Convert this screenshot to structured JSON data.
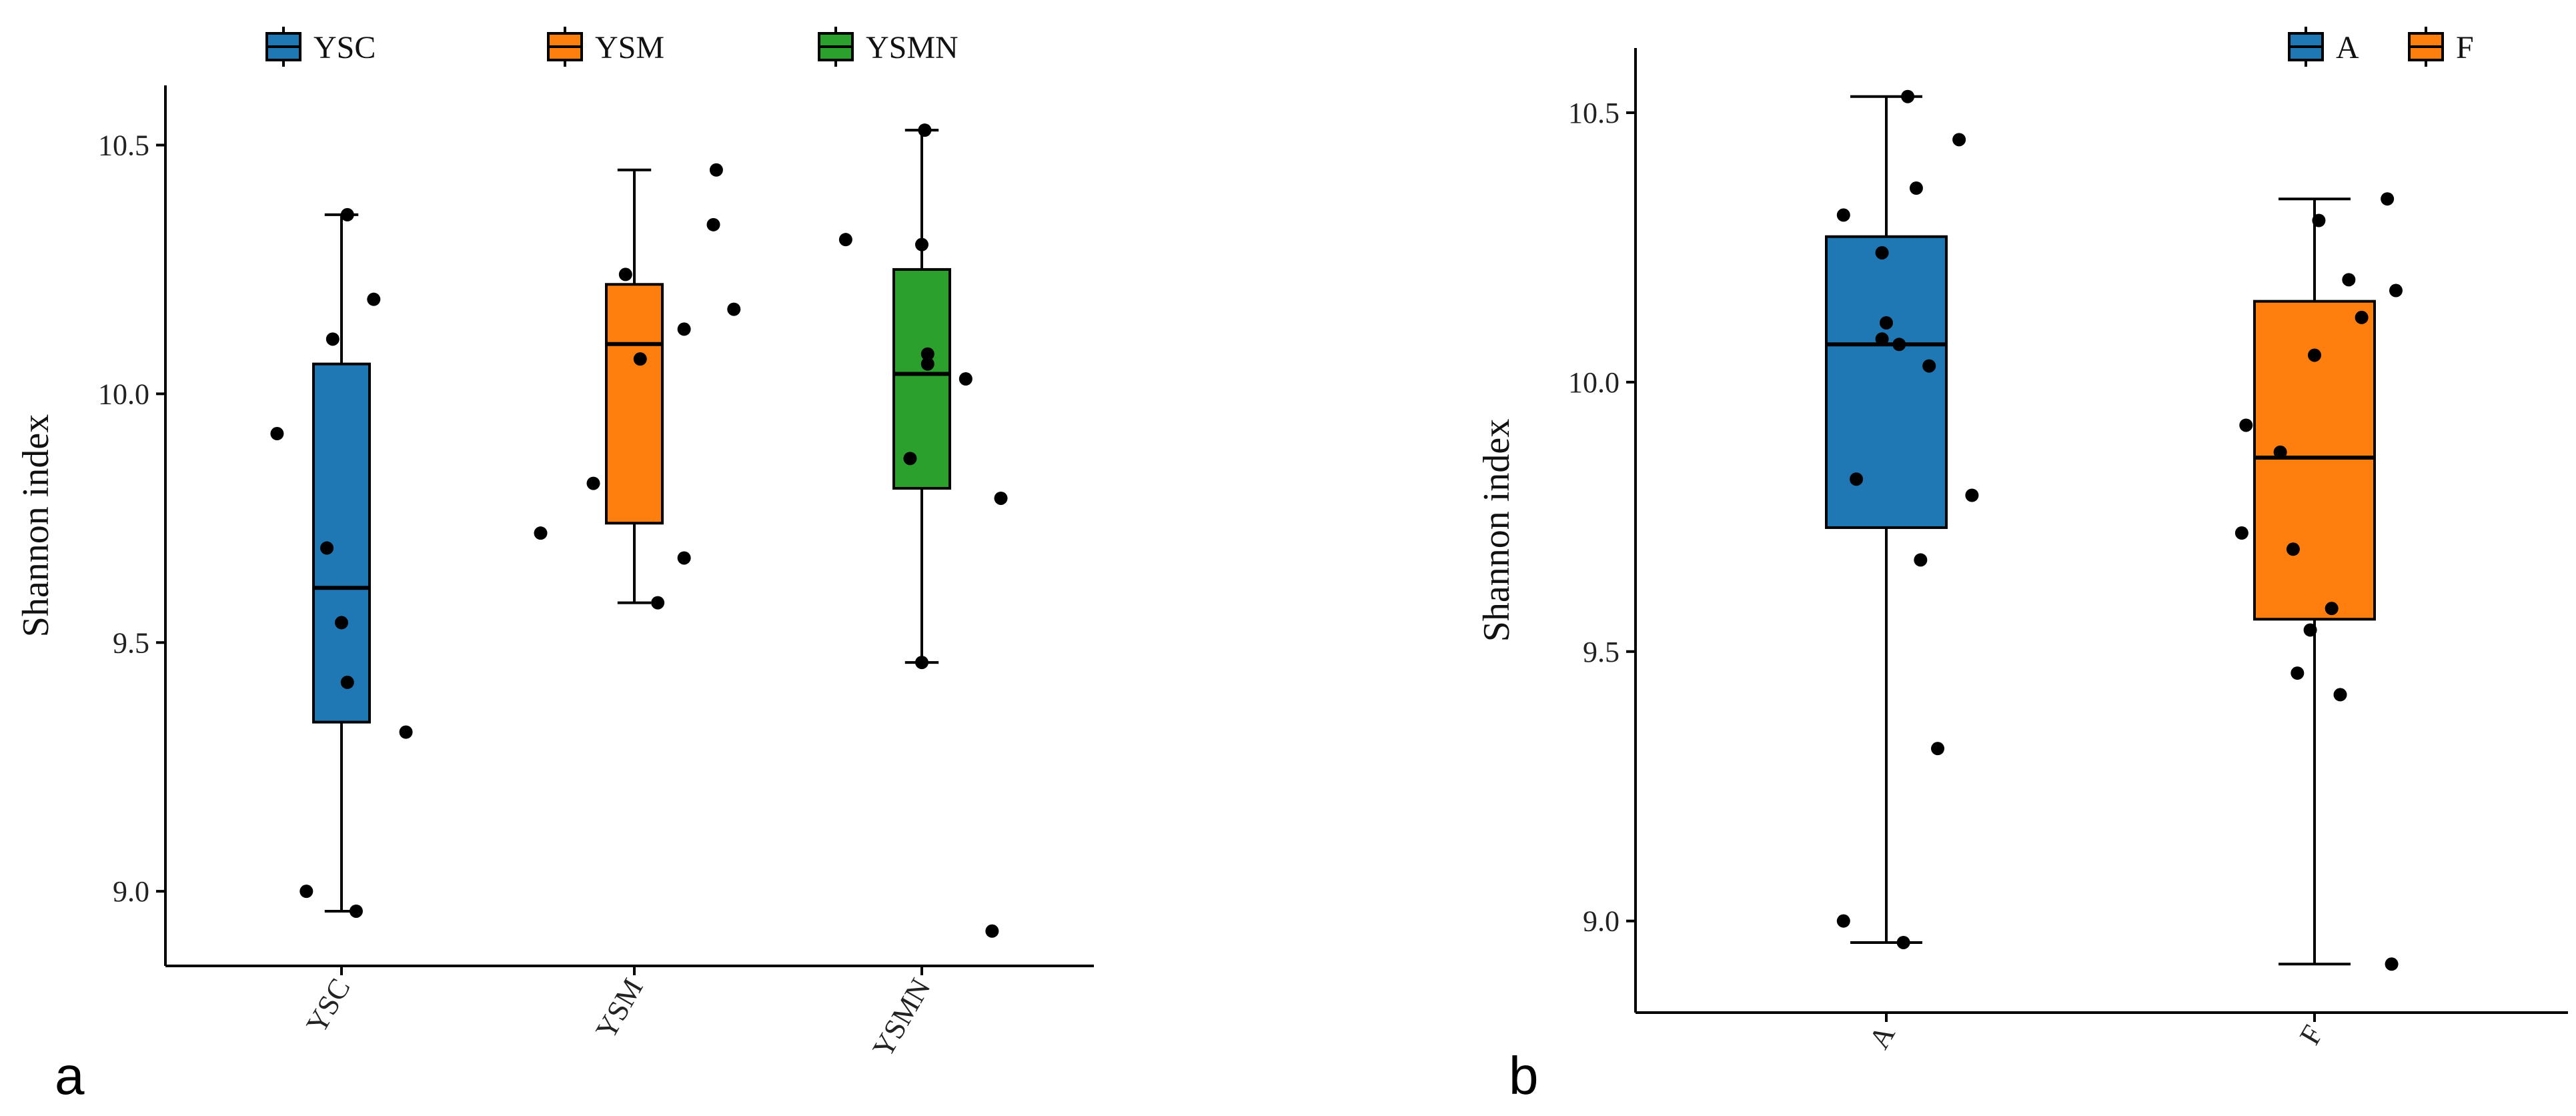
{
  "chart_data": [
    {
      "type": "box",
      "panel_label": "a",
      "ylabel": "Shannon index",
      "xlabel": "",
      "ylim": [
        8.85,
        10.62
      ],
      "yticks": [
        9.0,
        9.5,
        10.0,
        10.5
      ],
      "ytick_labels": [
        "9.0",
        "9.5",
        "10.0",
        "10.5"
      ],
      "legend_position": "top",
      "categories": [
        "YSC",
        "YSM",
        "YSMN"
      ],
      "series": [
        {
          "name": "YSC",
          "color": "#1F77B4",
          "whisker_low": 8.96,
          "q1": 9.34,
          "median": 9.61,
          "q3": 10.06,
          "whisker_high": 10.36,
          "points": [
            [
              -0.12,
              9.0
            ],
            [
              0.05,
              8.96
            ],
            [
              -0.22,
              9.92
            ],
            [
              0.22,
              9.32
            ],
            [
              0.02,
              9.42
            ],
            [
              0.0,
              9.54
            ],
            [
              -0.05,
              9.69
            ],
            [
              -0.03,
              10.11
            ],
            [
              0.02,
              10.36
            ],
            [
              0.11,
              10.19
            ]
          ]
        },
        {
          "name": "YSM",
          "color": "#FF7F0E",
          "whisker_low": 9.58,
          "q1": 9.74,
          "median": 10.1,
          "q3": 10.22,
          "whisker_high": 10.45,
          "points": [
            [
              -0.32,
              9.72
            ],
            [
              -0.14,
              9.82
            ],
            [
              0.08,
              9.58
            ],
            [
              0.17,
              9.67
            ],
            [
              0.02,
              10.07
            ],
            [
              -0.03,
              10.24
            ],
            [
              0.17,
              10.13
            ],
            [
              0.34,
              10.17
            ],
            [
              0.27,
              10.34
            ],
            [
              0.28,
              10.45
            ]
          ]
        },
        {
          "name": "YSMN",
          "color": "#2CA02C",
          "whisker_low": 9.46,
          "q1": 9.81,
          "median": 10.04,
          "q3": 10.25,
          "whisker_high": 10.53,
          "points": [
            [
              -0.26,
              10.31
            ],
            [
              0.0,
              10.3
            ],
            [
              -0.04,
              9.87
            ],
            [
              0.02,
              10.08
            ],
            [
              0.02,
              10.06
            ],
            [
              0.15,
              10.03
            ],
            [
              0.27,
              9.79
            ],
            [
              0.0,
              9.46
            ],
            [
              0.01,
              10.53
            ],
            [
              0.24,
              8.92
            ]
          ]
        }
      ]
    },
    {
      "type": "box",
      "panel_label": "b",
      "ylabel": "Shannon index",
      "xlabel": "",
      "ylim": [
        8.83,
        10.62
      ],
      "yticks": [
        9.0,
        9.5,
        10.0,
        10.5
      ],
      "ytick_labels": [
        "9.0",
        "9.5",
        "10.0",
        "10.5"
      ],
      "legend_position": "top-right",
      "categories": [
        "A",
        "F"
      ],
      "series": [
        {
          "name": "A",
          "color": "#1F77B4",
          "whisker_low": 8.96,
          "q1": 9.73,
          "median": 10.07,
          "q3": 10.27,
          "whisker_high": 10.53,
          "points": [
            [
              -0.1,
              9.0
            ],
            [
              0.04,
              8.96
            ],
            [
              -0.1,
              10.31
            ],
            [
              -0.07,
              9.82
            ],
            [
              0.05,
              10.53
            ],
            [
              0.07,
              10.36
            ],
            [
              -0.01,
              10.24
            ],
            [
              0.0,
              10.11
            ],
            [
              -0.01,
              10.08
            ],
            [
              0.03,
              10.07
            ],
            [
              0.1,
              10.03
            ],
            [
              0.08,
              9.67
            ],
            [
              0.12,
              9.32
            ],
            [
              0.17,
              10.45
            ],
            [
              0.2,
              9.79
            ]
          ]
        },
        {
          "name": "F",
          "color": "#FF7F0E",
          "whisker_low": 8.92,
          "q1": 9.56,
          "median": 9.86,
          "q3": 10.15,
          "whisker_high": 10.34,
          "points": [
            [
              -0.16,
              9.92
            ],
            [
              -0.17,
              9.72
            ],
            [
              -0.08,
              9.87
            ],
            [
              -0.05,
              9.69
            ],
            [
              -0.04,
              9.46
            ],
            [
              -0.01,
              9.54
            ],
            [
              0.0,
              10.05
            ],
            [
              0.01,
              10.3
            ],
            [
              0.04,
              9.58
            ],
            [
              0.08,
              10.19
            ],
            [
              0.11,
              10.12
            ],
            [
              0.06,
              9.42
            ],
            [
              0.17,
              10.34
            ],
            [
              0.19,
              10.17
            ],
            [
              0.18,
              8.92
            ]
          ]
        }
      ]
    }
  ]
}
